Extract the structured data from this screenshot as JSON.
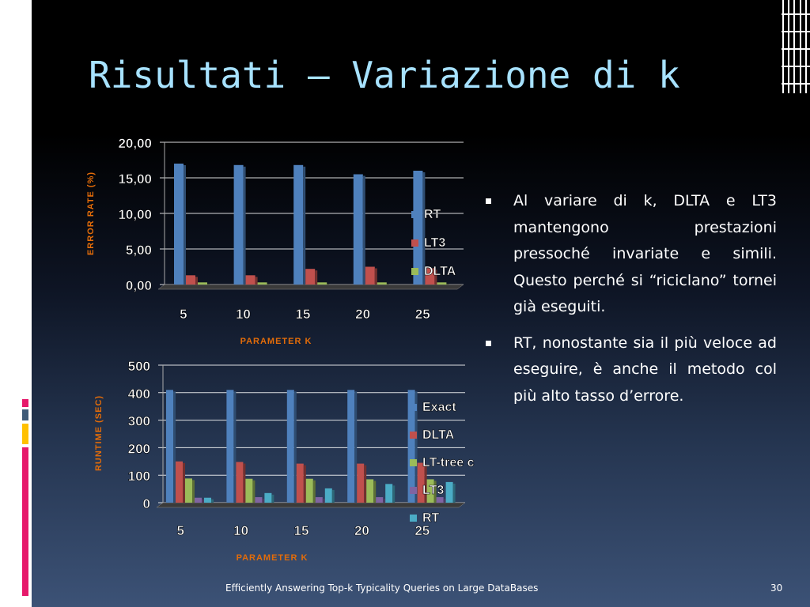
{
  "slide": {
    "title": "Risultati – Variazione di k",
    "footer": "Efficiently Answering Top-k Typicality Queries on Large DataBases",
    "page_number": "30"
  },
  "bullets": [
    {
      "text": "Al variare di k, DLTA e LT3 mantengono prestazioni pressoché invariate e simili. Questo perché si “riciclano” tornei già eseguiti."
    },
    {
      "text": "RT, nonostante sia il più veloce ad eseguire, è anche il metodo col più alto tasso d’errore."
    }
  ],
  "colors": {
    "title": "#a7e2ff",
    "axis_title": "#e36c09",
    "Exact": "#4f81bd",
    "RT_error": "#4f81bd",
    "LT3_error": "#c0504d",
    "DLTA_runtime": "#c0504d",
    "LT-tree c": "#9bbb59",
    "DLTA_error": "#9bbb59",
    "LT3_runtime": "#8064a2",
    "RT_runtime": "#4bacc6",
    "sidebar_stripes": [
      "#e6196b",
      "#ffc000",
      "#3f5b78",
      "#e6196b"
    ]
  },
  "chart_data": [
    {
      "type": "bar",
      "ylabel": "ERROR RATE (%)",
      "xlabel": "PARAMETER K",
      "categories": [
        "5",
        "10",
        "15",
        "20",
        "25"
      ],
      "ylim": [
        0,
        20
      ],
      "yticks": [
        "0,00",
        "5,00",
        "10,00",
        "15,00",
        "20,00"
      ],
      "grid": true,
      "legend_position": "right",
      "series": [
        {
          "name": "RT",
          "color": "#4f81bd",
          "values": [
            17.0,
            16.8,
            16.8,
            15.5,
            16.0
          ]
        },
        {
          "name": "LT3",
          "color": "#c0504d",
          "values": [
            1.3,
            1.3,
            2.2,
            2.5,
            2.3
          ]
        },
        {
          "name": "DLTA",
          "color": "#9bbb59",
          "values": [
            0.3,
            0.3,
            0.3,
            0.3,
            0.3
          ]
        }
      ]
    },
    {
      "type": "bar",
      "ylabel": "RUNTIME (SEC)",
      "xlabel": "PARAMETER K",
      "categories": [
        "5",
        "10",
        "15",
        "20",
        "25"
      ],
      "ylim": [
        0,
        500
      ],
      "yticks": [
        "0",
        "100",
        "200",
        "300",
        "400",
        "500"
      ],
      "grid": true,
      "legend_position": "right",
      "series": [
        {
          "name": "Exact",
          "color": "#4f81bd",
          "values": [
            410,
            410,
            410,
            410,
            410
          ]
        },
        {
          "name": "DLTA",
          "color": "#c0504d",
          "values": [
            150,
            148,
            142,
            142,
            145
          ]
        },
        {
          "name": "LT-tree c",
          "color": "#9bbb59",
          "values": [
            88,
            87,
            87,
            85,
            85
          ]
        },
        {
          "name": "LT3",
          "color": "#8064a2",
          "values": [
            18,
            20,
            20,
            20,
            20
          ]
        },
        {
          "name": "RT",
          "color": "#4bacc6",
          "values": [
            18,
            35,
            52,
            68,
            75
          ]
        }
      ]
    }
  ]
}
